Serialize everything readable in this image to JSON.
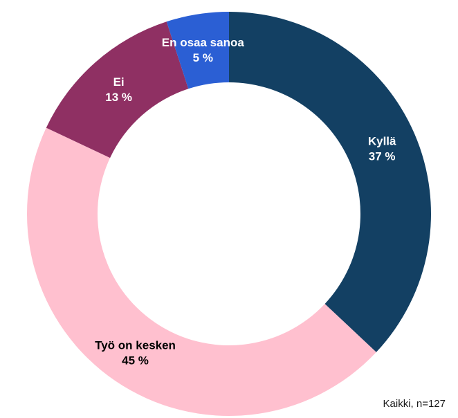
{
  "chart_data": {
    "type": "pie",
    "variant": "donut",
    "categories": [
      "Kyllä",
      "Työ on kesken",
      "Ei",
      "En osaa sanoa"
    ],
    "values": [
      37,
      45,
      13,
      5
    ],
    "value_labels": [
      "37 %",
      "45 %",
      "13 %",
      "5 %"
    ],
    "colors": [
      "#134063",
      "#ffc0cf",
      "#8f3063",
      "#2b5fd4"
    ],
    "label_colors": [
      "#ffffff",
      "#000000",
      "#ffffff",
      "#ffffff"
    ],
    "start": "top",
    "direction": "clockwise",
    "legend": "none"
  },
  "footnote": "Kaikki, n=127"
}
